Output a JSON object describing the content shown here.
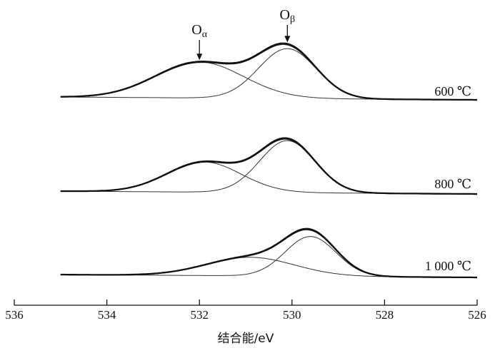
{
  "chart_data": {
    "type": "line",
    "xlabel": "结合能/eV",
    "ylabel": "",
    "xlim": [
      536,
      526
    ],
    "x_reversed": true,
    "x_ticks": [
      "536",
      "534",
      "532",
      "530",
      "528",
      "526"
    ],
    "peak_labels": [
      {
        "name": "Oα",
        "base": "O",
        "sub": "α",
        "x": 532.0
      },
      {
        "name": "Oβ",
        "base": "O",
        "sub": "β",
        "x": 530.1
      }
    ],
    "spectra": [
      {
        "label": "600 ℃",
        "components": [
          {
            "name": "Oα",
            "center": 532.0,
            "height": 0.72,
            "sigma": 0.95
          },
          {
            "name": "Oβ",
            "center": 530.1,
            "height": 1.0,
            "sigma": 0.62
          }
        ],
        "envelope_max": 1.05
      },
      {
        "label": "800 ℃",
        "components": [
          {
            "name": "Oα",
            "center": 531.9,
            "height": 0.58,
            "sigma": 0.8
          },
          {
            "name": "Oβ",
            "center": 530.1,
            "height": 1.0,
            "sigma": 0.6
          }
        ],
        "envelope_max": 1.05
      },
      {
        "label": "1 000 ℃",
        "components": [
          {
            "name": "Oα",
            "center": 530.9,
            "height": 0.42,
            "sigma": 0.95
          },
          {
            "name": "Oβ",
            "center": 529.6,
            "height": 0.9,
            "sigma": 0.55
          }
        ],
        "envelope_max": 1.0
      }
    ],
    "x_range_shown": [
      535,
      526
    ]
  }
}
